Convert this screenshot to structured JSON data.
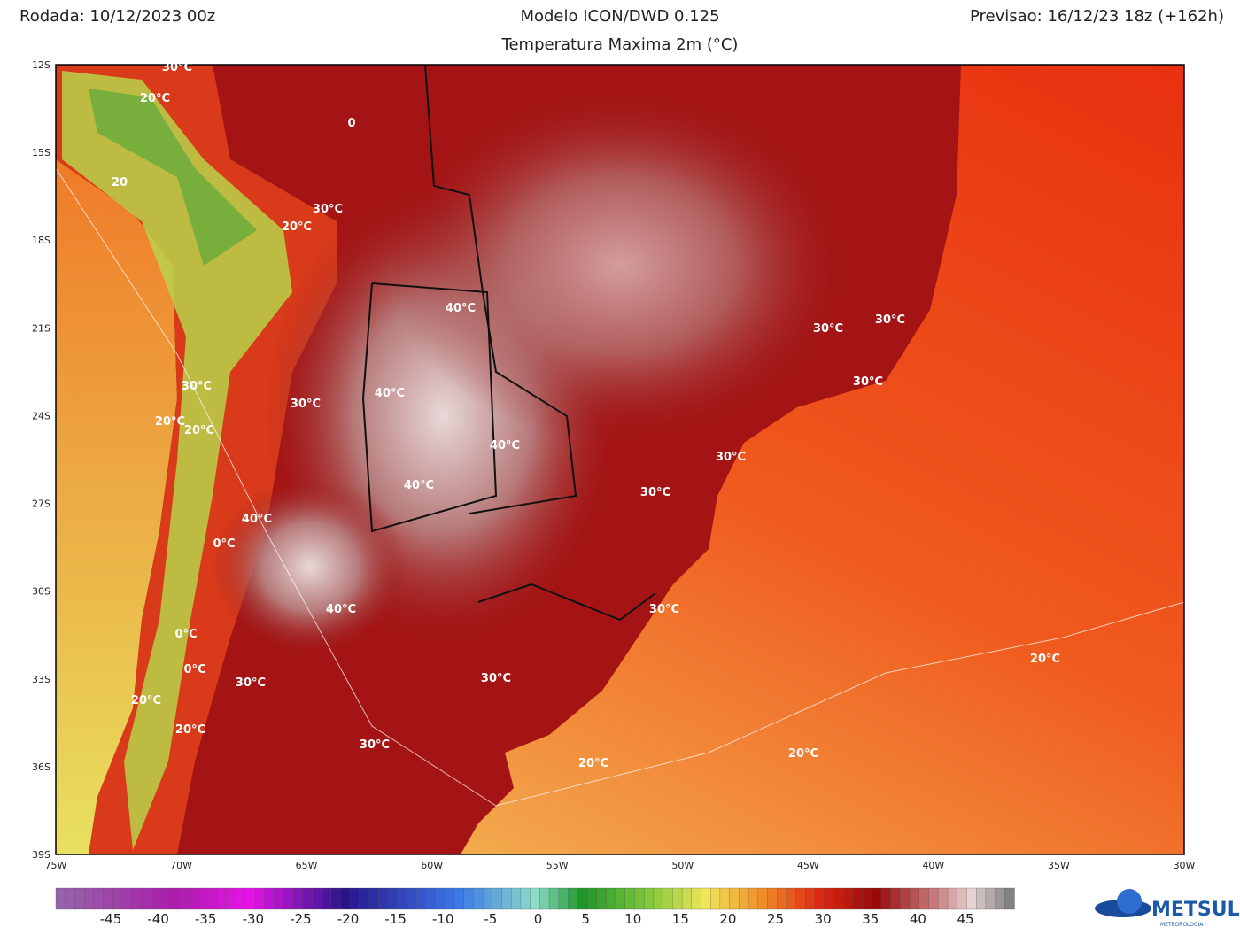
{
  "header": {
    "run": "Rodada: 10/12/2023 00z",
    "model": "Modelo ICON/DWD 0.125",
    "variable": "Temperatura Maxima 2m (°C)",
    "forecast": "Previsao: 16/12/23 18z (+162h)"
  },
  "map": {
    "lat_labels": [
      "12S",
      "15S",
      "18S",
      "21S",
      "24S",
      "27S",
      "30S",
      "33S",
      "36S",
      "39S"
    ],
    "lon_labels": [
      "75W",
      "70W",
      "65W",
      "60W",
      "55W",
      "50W",
      "45W",
      "40W",
      "35W",
      "30W"
    ],
    "contour_labels": [
      "30°C",
      "20°C",
      "20",
      "30°C",
      "20°C",
      "0",
      "40°C",
      "30°C",
      "30°C",
      "30°C",
      "30°C",
      "30°C",
      "20°C",
      "20°C",
      "40°C",
      "40°C",
      "40°C",
      "30°C",
      "30°C",
      "40°C",
      "0°C",
      "40°C",
      "30°C",
      "0°C",
      "20°C",
      "30°C",
      "30°C",
      "0°C",
      "20°C",
      "20°C",
      "30°C",
      "20°C",
      "20°C"
    ]
  },
  "colorbar": {
    "ticks": [
      -45,
      -40,
      -35,
      -30,
      -25,
      -20,
      -15,
      -10,
      -5,
      0,
      5,
      10,
      15,
      20,
      25,
      30,
      35,
      40,
      45
    ]
  },
  "logo": {
    "name": "METSUL",
    "subtitle": "METEOROLOGIA"
  }
}
